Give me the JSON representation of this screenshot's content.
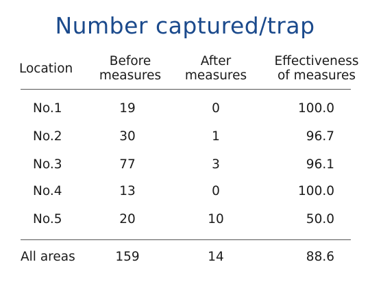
{
  "title": "Number captured/trap",
  "headers": {
    "location": "Location",
    "before_1": "Before",
    "before_2": "measures",
    "after_1": "After",
    "after_2": "measures",
    "eff_1": "Effectiveness",
    "eff_2": "of measures"
  },
  "rows": [
    {
      "location": "No.1",
      "before": "19",
      "after": "0",
      "effectiveness": "100.0"
    },
    {
      "location": "No.2",
      "before": "30",
      "after": "1",
      "effectiveness": "96.7"
    },
    {
      "location": "No.3",
      "before": "77",
      "after": "3",
      "effectiveness": "96.1"
    },
    {
      "location": "No.4",
      "before": "13",
      "after": "0",
      "effectiveness": "100.0"
    },
    {
      "location": "No.5",
      "before": "20",
      "after": "10",
      "effectiveness": "50.0"
    }
  ],
  "total": {
    "location": "All areas",
    "before": "159",
    "after": "14",
    "effectiveness": "88.6"
  }
}
